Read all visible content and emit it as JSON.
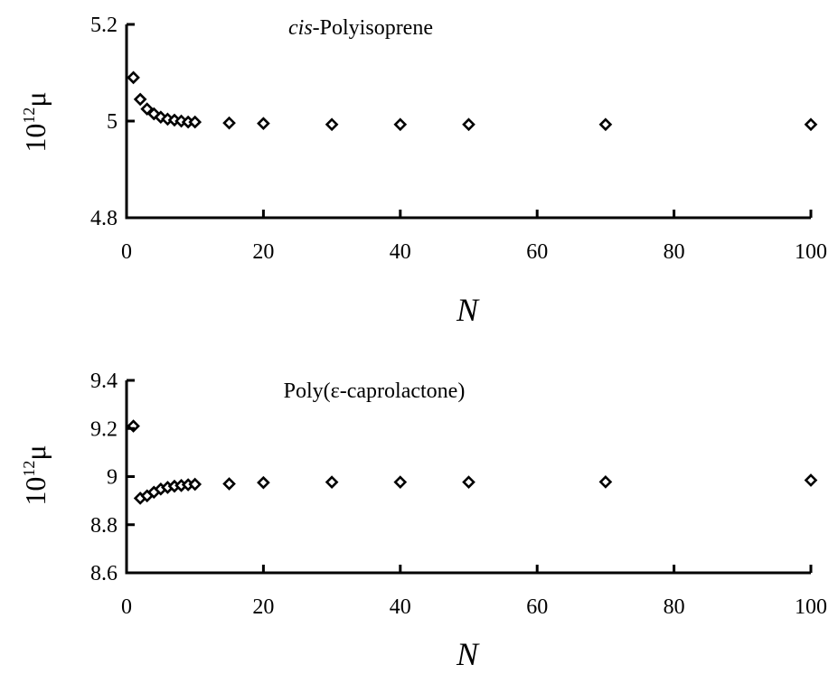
{
  "chart_data": [
    {
      "type": "scatter",
      "title": "cis-Polyisoprene",
      "title_italic_part": "cis",
      "title_rest": "-Polyisoprene",
      "xlabel": "N",
      "ylabel_base": "10",
      "ylabel_exp": "12",
      "ylabel_symbol": "μ",
      "xlim": [
        0,
        100
      ],
      "ylim": [
        4.8,
        5.2
      ],
      "xticks": [
        0,
        20,
        40,
        60,
        80,
        100
      ],
      "yticks": [
        4.8,
        5.0,
        5.2
      ],
      "xtick_labels": [
        "0",
        "20",
        "40",
        "60",
        "80",
        "100"
      ],
      "ytick_labels": [
        "4.8",
        "5",
        "5.2"
      ],
      "grid": false,
      "marker": "open-diamond",
      "series": [
        {
          "x": [
            1,
            2,
            3,
            4,
            5,
            6,
            7,
            8,
            9,
            10,
            15,
            20,
            30,
            40,
            50,
            70,
            100
          ],
          "y": [
            5.09,
            5.045,
            5.025,
            5.015,
            5.008,
            5.004,
            5.002,
            5.0,
            4.998,
            4.998,
            4.996,
            4.995,
            4.993,
            4.993,
            4.993,
            4.993,
            4.993
          ]
        }
      ]
    },
    {
      "type": "scatter",
      "title": "Poly(ε-caprolactone)",
      "xlabel": "N",
      "ylabel_base": "10",
      "ylabel_exp": "12",
      "ylabel_symbol": "μ",
      "xlim": [
        0,
        100
      ],
      "ylim": [
        8.6,
        9.4
      ],
      "xticks": [
        0,
        20,
        40,
        60,
        80,
        100
      ],
      "yticks": [
        8.6,
        8.8,
        9.0,
        9.2,
        9.4
      ],
      "xtick_labels": [
        "0",
        "20",
        "40",
        "60",
        "80",
        "100"
      ],
      "ytick_labels": [
        "8.6",
        "8.8",
        "9",
        "9.2",
        "9.4"
      ],
      "grid": false,
      "marker": "open-diamond",
      "series": [
        {
          "x": [
            1,
            2,
            3,
            4,
            5,
            6,
            7,
            8,
            9,
            10,
            15,
            20,
            30,
            40,
            50,
            70,
            100
          ],
          "y": [
            9.21,
            8.91,
            8.92,
            8.935,
            8.948,
            8.955,
            8.96,
            8.963,
            8.966,
            8.968,
            8.97,
            8.975,
            8.977,
            8.977,
            8.977,
            8.978,
            8.985
          ]
        }
      ]
    }
  ]
}
